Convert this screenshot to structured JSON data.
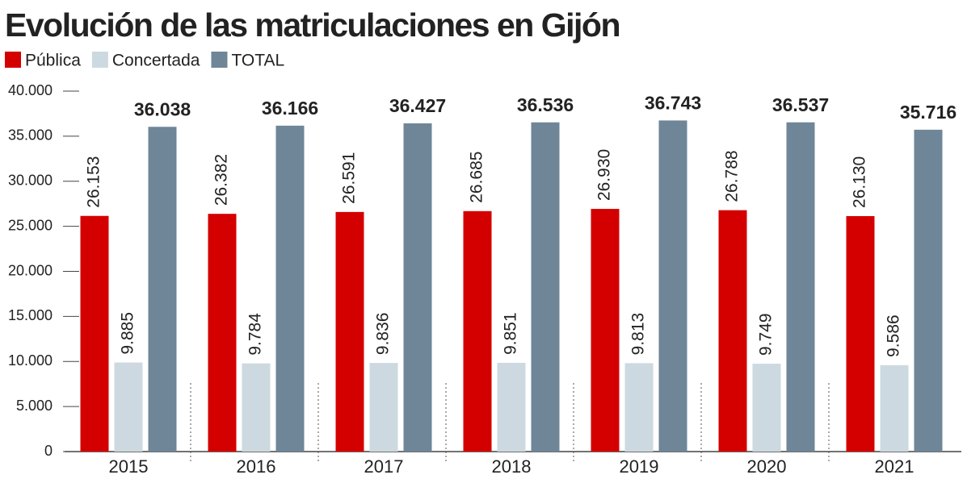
{
  "chart_data": {
    "type": "bar",
    "title": "Evolución de las matriculaciones en Gijón",
    "categories": [
      "2015",
      "2016",
      "2017",
      "2018",
      "2019",
      "2020",
      "2021"
    ],
    "series": [
      {
        "name": "Pública",
        "color": "#d40000",
        "values": [
          26153,
          26382,
          26591,
          26685,
          26930,
          26788,
          26130
        ],
        "value_labels": [
          "26.153",
          "26.382",
          "26.591",
          "26.685",
          "26.930",
          "26.788",
          "26.130"
        ]
      },
      {
        "name": "Concertada",
        "color": "#cdd9e0",
        "values": [
          9885,
          9784,
          9836,
          9851,
          9813,
          9749,
          9586
        ],
        "value_labels": [
          "9.885",
          "9.784",
          "9.836",
          "9.851",
          "9.813",
          "9.749",
          "9.586"
        ]
      },
      {
        "name": "TOTAL",
        "color": "#6e8698",
        "values": [
          36038,
          36166,
          36427,
          36536,
          36743,
          36537,
          35716
        ],
        "value_labels": [
          "36.038",
          "36.166",
          "36.427",
          "36.536",
          "36.743",
          "36.537",
          "35.716"
        ]
      }
    ],
    "ylim": [
      0,
      40000
    ],
    "yticks": [
      0,
      {
        "value": 5000,
        "label": "5.000"
      },
      {
        "value": 10000,
        "label": "10.000"
      },
      {
        "value": 15000,
        "label": "15.000"
      },
      {
        "value": 20000,
        "label": "20.000"
      },
      {
        "value": 25000,
        "label": "25.000"
      },
      {
        "value": 30000,
        "label": "30.000"
      },
      {
        "value": 35000,
        "label": "35.000"
      },
      {
        "value": 40000,
        "label": "40.000"
      }
    ],
    "legend": "top-left"
  }
}
